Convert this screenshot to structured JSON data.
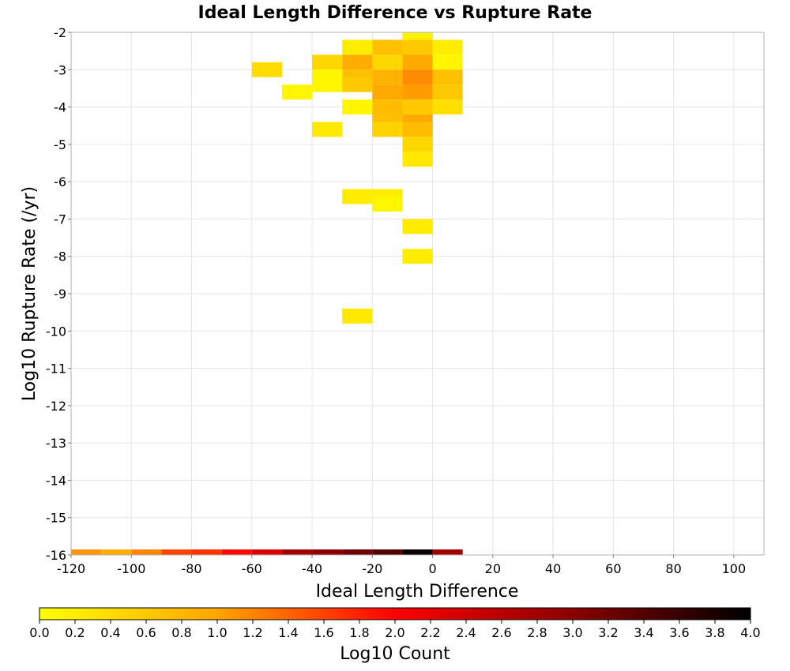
{
  "chart_data": {
    "type": "heatmap",
    "title": "Ideal Length Difference vs Rupture Rate",
    "xlabel": "Ideal Length Difference",
    "ylabel": "Log10 Rupture Rate (/yr)",
    "xlim": [
      -120,
      110
    ],
    "ylim": [
      -16,
      -2
    ],
    "x_ticks": [
      "-120",
      "-100",
      "-80",
      "-60",
      "-40",
      "-20",
      "0",
      "20",
      "40",
      "60",
      "80",
      "100"
    ],
    "y_ticks": [
      "-2",
      "-3",
      "-4",
      "-5",
      "-6",
      "-7",
      "-8",
      "-9",
      "-10",
      "-11",
      "-12",
      "-13",
      "-14",
      "-15",
      "-16"
    ],
    "grid": true,
    "x_bin_width": 10,
    "y_bin_height": 0.4,
    "colorbar": {
      "label": "Log10 Count",
      "range": [
        0,
        4
      ],
      "position": "bottom",
      "ticks": [
        "0.0",
        "0.2",
        "0.4",
        "0.6",
        "0.8",
        "1.0",
        "1.2",
        "1.4",
        "1.6",
        "1.8",
        "2.0",
        "2.2",
        "2.4",
        "2.6",
        "2.8",
        "3.0",
        "3.2",
        "3.4",
        "3.6",
        "3.8",
        "4.0"
      ],
      "colors": [
        "#ffff00",
        "#ffa500",
        "#ff0000",
        "#8b0000",
        "#000000"
      ]
    },
    "cells": [
      {
        "x": -10,
        "y": -2.2,
        "v": 0.15
      },
      {
        "x": -10,
        "y": -2.6,
        "v": 0.6
      },
      {
        "x": -30,
        "y": -2.6,
        "v": 0.2
      },
      {
        "x": -20,
        "y": -2.6,
        "v": 0.7
      },
      {
        "x": 0,
        "y": -2.6,
        "v": 0.2
      },
      {
        "x": -40,
        "y": -3.0,
        "v": 0.45
      },
      {
        "x": -30,
        "y": -3.0,
        "v": 0.9
      },
      {
        "x": -20,
        "y": -3.0,
        "v": 0.45
      },
      {
        "x": -10,
        "y": -3.0,
        "v": 0.95
      },
      {
        "x": 0,
        "y": -3.0,
        "v": 0.1
      },
      {
        "x": -60,
        "y": -3.2,
        "v": 0.4
      },
      {
        "x": -40,
        "y": -3.4,
        "v": 0.1
      },
      {
        "x": -30,
        "y": -3.4,
        "v": 0.7
      },
      {
        "x": -20,
        "y": -3.4,
        "v": 0.85
      },
      {
        "x": -10,
        "y": -3.4,
        "v": 1.15
      },
      {
        "x": 0,
        "y": -3.4,
        "v": 0.7
      },
      {
        "x": -50,
        "y": -3.8,
        "v": 0.1
      },
      {
        "x": -40,
        "y": -3.6,
        "v": 0.1
      },
      {
        "x": -30,
        "y": -3.6,
        "v": 0.6
      },
      {
        "x": -20,
        "y": -3.8,
        "v": 0.95
      },
      {
        "x": -10,
        "y": -3.8,
        "v": 1.05
      },
      {
        "x": 0,
        "y": -3.8,
        "v": 0.6
      },
      {
        "x": -30,
        "y": -4.2,
        "v": 0.1
      },
      {
        "x": -20,
        "y": -4.2,
        "v": 0.75
      },
      {
        "x": -10,
        "y": -4.2,
        "v": 0.6
      },
      {
        "x": 0,
        "y": -4.2,
        "v": 0.35
      },
      {
        "x": -20,
        "y": -4.6,
        "v": 0.7
      },
      {
        "x": -10,
        "y": -4.6,
        "v": 0.95
      },
      {
        "x": -40,
        "y": -4.8,
        "v": 0.25
      },
      {
        "x": -20,
        "y": -4.8,
        "v": 0.5
      },
      {
        "x": -10,
        "y": -4.8,
        "v": 0.75
      },
      {
        "x": -10,
        "y": -5.2,
        "v": 0.45
      },
      {
        "x": -10,
        "y": -5.6,
        "v": 0.25
      },
      {
        "x": -30,
        "y": -6.6,
        "v": 0.2
      },
      {
        "x": -20,
        "y": -6.6,
        "v": 0.2
      },
      {
        "x": -20,
        "y": -6.8,
        "v": 0.1
      },
      {
        "x": -10,
        "y": -7.4,
        "v": 0.2
      },
      {
        "x": -10,
        "y": -8.2,
        "v": 0.2
      },
      {
        "x": -30,
        "y": -9.8,
        "v": 0.25
      },
      {
        "x": -120,
        "y": -16.0,
        "v": 1.1
      },
      {
        "x": -110,
        "y": -16.0,
        "v": 0.9
      },
      {
        "x": -100,
        "y": -16.0,
        "v": 1.2
      },
      {
        "x": -90,
        "y": -16.0,
        "v": 1.6
      },
      {
        "x": -80,
        "y": -16.0,
        "v": 1.7
      },
      {
        "x": -70,
        "y": -16.0,
        "v": 1.95
      },
      {
        "x": -60,
        "y": -16.0,
        "v": 2.3
      },
      {
        "x": -50,
        "y": -16.0,
        "v": 2.8
      },
      {
        "x": -40,
        "y": -16.0,
        "v": 3.0
      },
      {
        "x": -30,
        "y": -16.0,
        "v": 3.2
      },
      {
        "x": -20,
        "y": -16.0,
        "v": 3.4
      },
      {
        "x": -10,
        "y": -16.0,
        "v": 3.9
      },
      {
        "x": 0,
        "y": -16.0,
        "v": 2.8
      }
    ]
  }
}
